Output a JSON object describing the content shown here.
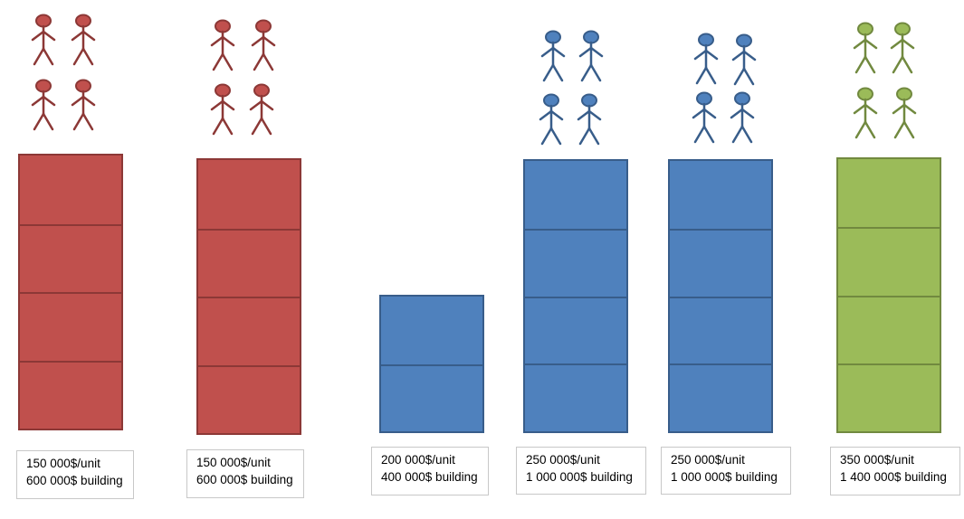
{
  "columns": [
    {
      "people": 4,
      "floors": 4,
      "fill": "#c0504d",
      "stroke": "#8c3836",
      "price_per_unit": "150 000$/unit",
      "building_price": "600 000$ building"
    },
    {
      "people": 4,
      "floors": 4,
      "fill": "#c0504d",
      "stroke": "#8c3836",
      "price_per_unit": "150 000$/unit",
      "building_price": "600 000$ building"
    },
    {
      "people": 0,
      "floors": 2,
      "fill": "#4f81bd",
      "stroke": "#385d8a",
      "price_per_unit": "200 000$/unit",
      "building_price": "400 000$ building"
    },
    {
      "people": 4,
      "floors": 4,
      "fill": "#4f81bd",
      "stroke": "#385d8a",
      "price_per_unit": "250 000$/unit",
      "building_price": "1 000 000$ building"
    },
    {
      "people": 4,
      "floors": 4,
      "fill": "#4f81bd",
      "stroke": "#385d8a",
      "price_per_unit": "250 000$/unit",
      "building_price": "1 000 000$ building"
    },
    {
      "people": 4,
      "floors": 4,
      "fill": "#9bbb59",
      "stroke": "#71893f",
      "price_per_unit": "350 000$/unit",
      "building_price": "1 400 000$ building"
    }
  ]
}
